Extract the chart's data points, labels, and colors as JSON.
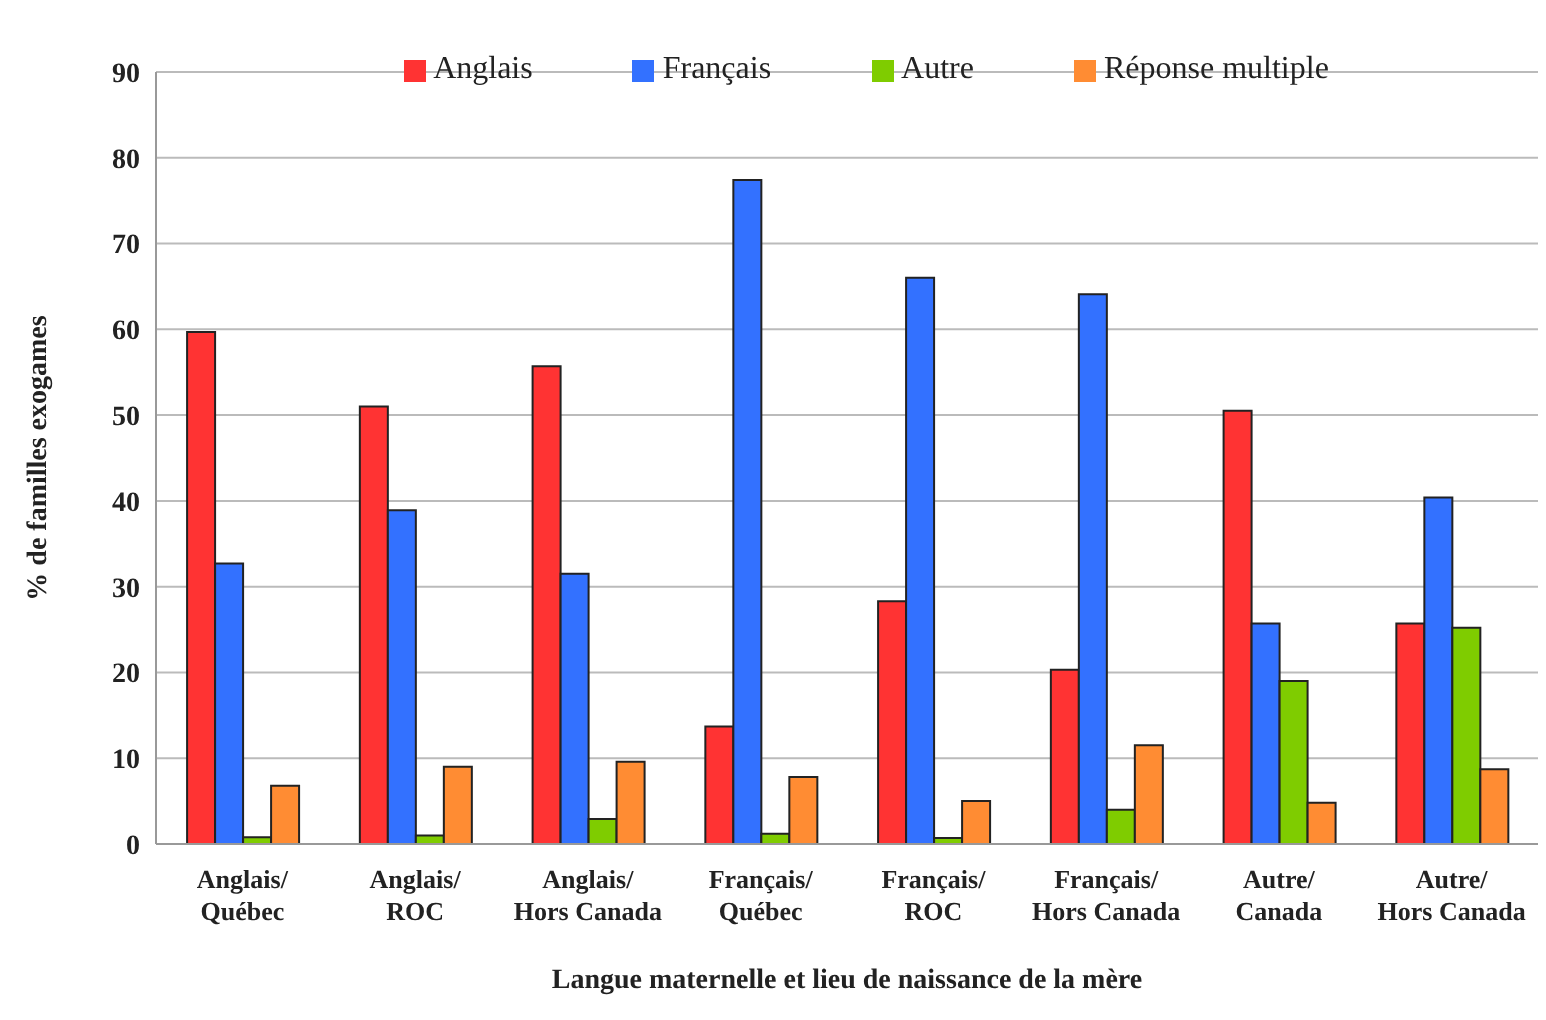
{
  "chart_data": {
    "type": "bar",
    "xlabel": "Langue maternelle et lieu de naissance de la mère",
    "ylabel": "% de familles exogames",
    "categories": [
      "Anglais/\nQuébec",
      "Anglais/\nROC",
      "Anglais/\nHors Canada",
      "Français/\nQuébec",
      "Français/\nROC",
      "Français/\nHors Canada",
      "Autre/\nCanada",
      "Autre/\nHors Canada"
    ],
    "series": [
      {
        "name": "Anglais",
        "color": "#ff3333",
        "values": [
          59.7,
          51.0,
          55.7,
          13.7,
          28.3,
          20.3,
          50.5,
          25.7
        ]
      },
      {
        "name": "Français",
        "color": "#3371ff",
        "values": [
          32.7,
          38.9,
          31.5,
          77.4,
          66.0,
          64.1,
          25.7,
          40.4
        ]
      },
      {
        "name": "Autre",
        "color": "#7fcc00",
        "values": [
          0.8,
          1.0,
          2.9,
          1.2,
          0.7,
          4.0,
          19.0,
          25.2
        ]
      },
      {
        "name": "Réponse multiple",
        "color": "#ff8c33",
        "values": [
          6.8,
          9.0,
          9.6,
          7.8,
          5.0,
          11.5,
          4.8,
          8.7
        ]
      }
    ],
    "ylim": [
      0,
      90
    ],
    "yticks": [
      0,
      10,
      20,
      30,
      40,
      50,
      60,
      70,
      80,
      90
    ],
    "grid": "y",
    "legend": "top"
  }
}
